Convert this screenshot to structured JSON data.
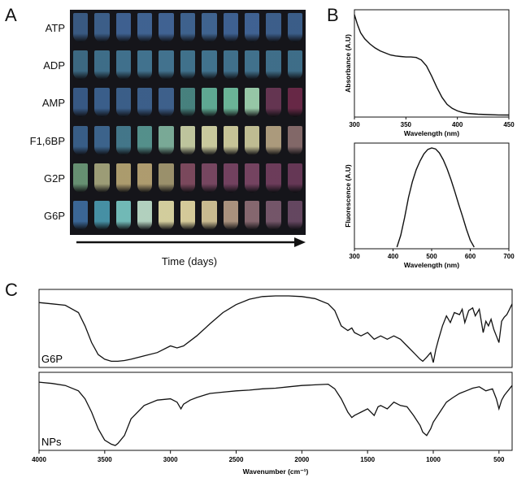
{
  "panels": {
    "a": "A",
    "b": "B",
    "c": "C"
  },
  "panel_a": {
    "rows": [
      {
        "label": "ATP",
        "colors": [
          "#3c5f8a",
          "#3f6491",
          "#42679a",
          "#43699b",
          "#44699d",
          "#426897",
          "#436a99",
          "#41669a",
          "#43689c",
          "#406494",
          "#3e6391"
        ]
      },
      {
        "label": "ADP",
        "colors": [
          "#3f6f8a",
          "#427592",
          "#447896",
          "#457a98",
          "#467a98",
          "#447995",
          "#457a97",
          "#447895",
          "#457996",
          "#437693",
          "#427591"
        ]
      },
      {
        "label": "AMP",
        "colors": [
          "#3a5e8d",
          "#3d6494",
          "#3e6492",
          "#3f6593",
          "#416695",
          "#4b8a86",
          "#64b59c",
          "#72c2a2",
          "#a1d6b2",
          "#6b3856",
          "#6e2a4a"
        ]
      },
      {
        "label": "F1,6BP",
        "colors": [
          "#3b6390",
          "#3f6a95",
          "#477f93",
          "#5a9a95",
          "#82b6a1",
          "#cdd3a8",
          "#d8d8a8",
          "#d6d2a2",
          "#ceca9c",
          "#b8a684",
          "#8b6f6f"
        ]
      },
      {
        "label": "G2P",
        "colors": [
          "#6d9a79",
          "#a8a87e",
          "#b8a774",
          "#bba776",
          "#a69b72",
          "#834d62",
          "#7e4a66",
          "#7a4565",
          "#7c4766",
          "#733f5f",
          "#6c3a5a"
        ]
      },
      {
        "label": "G6P",
        "colors": [
          "#3e6da0",
          "#4a9ab0",
          "#79c7c4",
          "#bfe0cc",
          "#e3dda8",
          "#e4d9a4",
          "#d8c89a",
          "#b69c86",
          "#8f6e76",
          "#7c5b70",
          "#6b4b66"
        ]
      }
    ],
    "xlabel": "Time (days)"
  },
  "chart_data": [
    {
      "type": "line",
      "ylabel": "Absorbance (A.U)",
      "xlabel": "Wavelength (nm)",
      "xlim": [
        300,
        450
      ],
      "xticks": [
        300,
        350,
        400,
        450
      ],
      "series": [
        {
          "x": [
            300,
            303,
            306,
            310,
            315,
            320,
            325,
            330,
            335,
            340,
            345,
            350,
            355,
            360,
            365,
            370,
            375,
            380,
            385,
            390,
            395,
            400,
            405,
            410,
            420,
            430,
            440,
            450
          ],
          "y": [
            1.0,
            0.9,
            0.82,
            0.76,
            0.71,
            0.67,
            0.64,
            0.62,
            0.6,
            0.59,
            0.585,
            0.58,
            0.58,
            0.575,
            0.55,
            0.49,
            0.39,
            0.28,
            0.18,
            0.11,
            0.07,
            0.045,
            0.03,
            0.02,
            0.012,
            0.008,
            0.005,
            0.004
          ]
        }
      ]
    },
    {
      "type": "line",
      "ylabel": "Fluorescence (A.U)",
      "xlabel": "Wavelength (nm)",
      "xlim": [
        300,
        700
      ],
      "xticks": [
        300,
        400,
        500,
        600,
        700
      ],
      "series": [
        {
          "x": [
            410,
            420,
            430,
            440,
            450,
            460,
            470,
            480,
            490,
            500,
            510,
            520,
            530,
            540,
            550,
            560,
            570,
            580,
            590,
            600,
            610
          ],
          "y": [
            0.0,
            0.12,
            0.3,
            0.5,
            0.66,
            0.78,
            0.87,
            0.94,
            0.985,
            1.0,
            0.99,
            0.95,
            0.88,
            0.79,
            0.68,
            0.56,
            0.43,
            0.31,
            0.18,
            0.07,
            0.0
          ]
        }
      ]
    },
    {
      "type": "line",
      "xlabel": "Wavenumber (cm⁻¹)",
      "xlim": [
        4000,
        400
      ],
      "xticks": [
        4000,
        3500,
        3000,
        2500,
        2000,
        1500,
        1000,
        500
      ],
      "series": [
        {
          "name": "G6P",
          "x": [
            4000,
            3900,
            3800,
            3700,
            3650,
            3600,
            3550,
            3500,
            3450,
            3400,
            3350,
            3300,
            3200,
            3100,
            3000,
            2950,
            2900,
            2800,
            2700,
            2600,
            2500,
            2400,
            2300,
            2200,
            2100,
            2000,
            1900,
            1800,
            1750,
            1700,
            1650,
            1620,
            1600,
            1550,
            1500,
            1450,
            1420,
            1400,
            1350,
            1300,
            1250,
            1200,
            1150,
            1100,
            1080,
            1050,
            1020,
            1000,
            980,
            960,
            930,
            900,
            870,
            840,
            800,
            780,
            760,
            730,
            700,
            680,
            650,
            620,
            600,
            580,
            560,
            540,
            520,
            500,
            480,
            460,
            440,
            420,
            400
          ],
          "y": [
            0.9,
            0.88,
            0.86,
            0.75,
            0.55,
            0.3,
            0.12,
            0.05,
            0.02,
            0.02,
            0.03,
            0.05,
            0.1,
            0.15,
            0.25,
            0.22,
            0.25,
            0.4,
            0.58,
            0.75,
            0.87,
            0.95,
            0.99,
            1.0,
            1.0,
            0.99,
            0.96,
            0.88,
            0.78,
            0.55,
            0.48,
            0.52,
            0.45,
            0.4,
            0.45,
            0.35,
            0.38,
            0.4,
            0.35,
            0.4,
            0.35,
            0.25,
            0.15,
            0.05,
            0.02,
            0.08,
            0.15,
            0.0,
            0.2,
            0.35,
            0.55,
            0.7,
            0.6,
            0.75,
            0.72,
            0.8,
            0.6,
            0.78,
            0.82,
            0.7,
            0.8,
            0.45,
            0.62,
            0.55,
            0.65,
            0.5,
            0.4,
            0.3,
            0.62,
            0.68,
            0.72,
            0.8,
            0.88
          ]
        },
        {
          "name": "NPs",
          "x": [
            4000,
            3900,
            3800,
            3700,
            3650,
            3600,
            3550,
            3500,
            3450,
            3420,
            3400,
            3350,
            3300,
            3200,
            3100,
            3000,
            2950,
            2920,
            2900,
            2850,
            2800,
            2700,
            2600,
            2500,
            2400,
            2300,
            2200,
            2100,
            2000,
            1900,
            1800,
            1750,
            1700,
            1650,
            1620,
            1600,
            1550,
            1500,
            1450,
            1420,
            1400,
            1350,
            1300,
            1250,
            1200,
            1150,
            1100,
            1080,
            1050,
            1020,
            1000,
            950,
            900,
            850,
            800,
            750,
            700,
            650,
            600,
            550,
            520,
            500,
            480,
            460,
            440,
            420,
            400
          ],
          "y": [
            0.95,
            0.93,
            0.9,
            0.82,
            0.7,
            0.5,
            0.25,
            0.08,
            0.02,
            0.0,
            0.03,
            0.15,
            0.4,
            0.6,
            0.68,
            0.7,
            0.65,
            0.55,
            0.62,
            0.68,
            0.72,
            0.78,
            0.8,
            0.82,
            0.83,
            0.85,
            0.86,
            0.88,
            0.9,
            0.91,
            0.92,
            0.85,
            0.7,
            0.5,
            0.42,
            0.45,
            0.5,
            0.55,
            0.45,
            0.58,
            0.6,
            0.55,
            0.65,
            0.6,
            0.58,
            0.45,
            0.3,
            0.2,
            0.15,
            0.25,
            0.35,
            0.5,
            0.65,
            0.72,
            0.78,
            0.82,
            0.86,
            0.88,
            0.82,
            0.85,
            0.7,
            0.55,
            0.68,
            0.75,
            0.8,
            0.85,
            0.9
          ]
        }
      ]
    }
  ]
}
